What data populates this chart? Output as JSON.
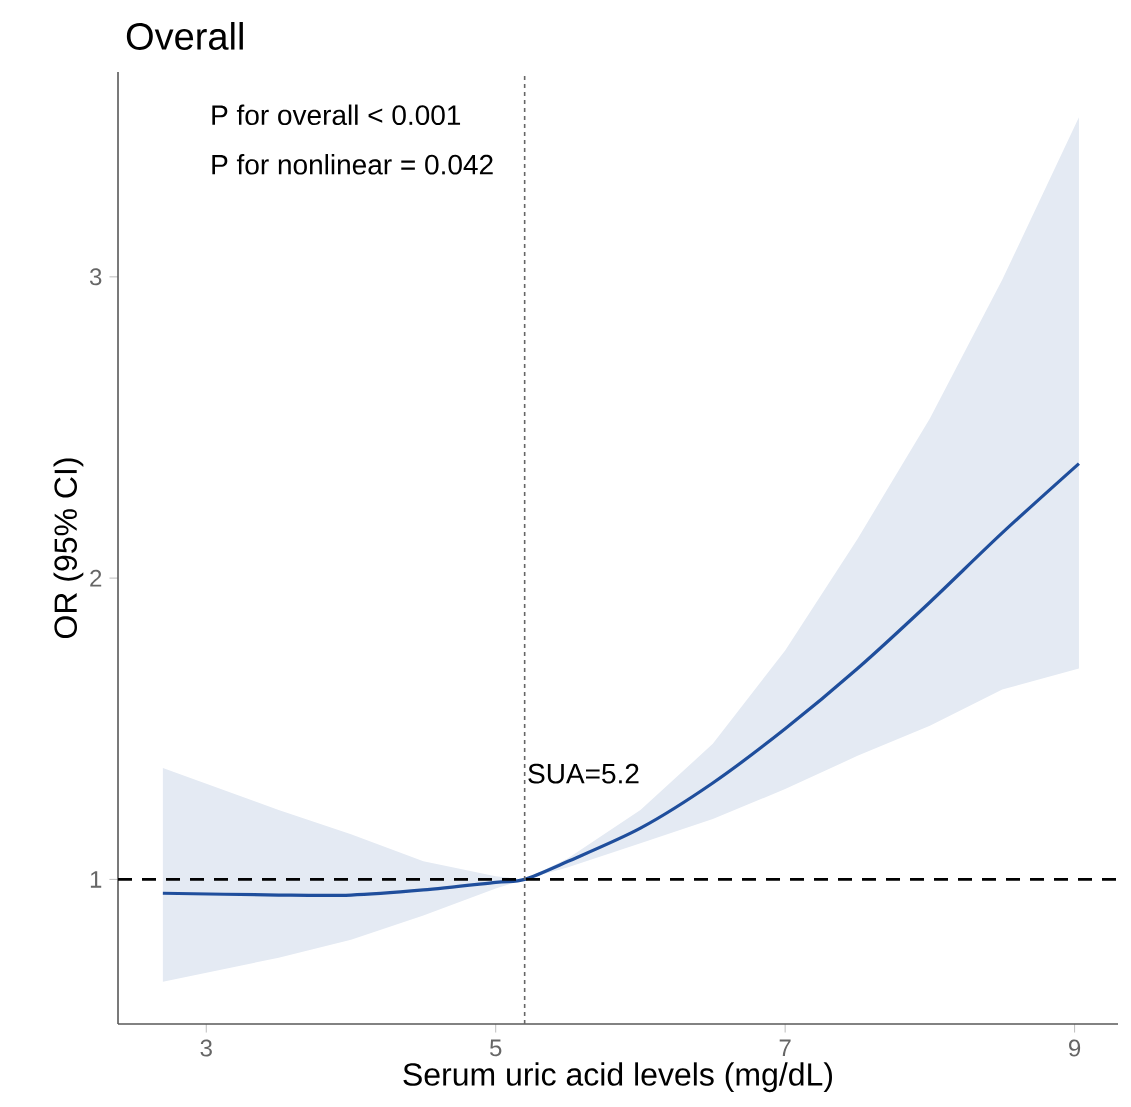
{
  "chart_data": {
    "type": "line",
    "title": "Overall",
    "xlabel": "Serum uric acid levels (mg/dL)",
    "ylabel": "OR (95% CI)",
    "annotations": [
      "P for overall < 0.001",
      "P for nonlinear = 0.042"
    ],
    "series": [
      {
        "color": "#1f4e9c",
        "x": [
          2.7,
          3.5,
          4,
          4.5,
          5,
          5.2,
          5.5,
          6,
          6.5,
          7,
          7.5,
          8,
          8.5,
          9.03
        ],
        "values": [
          0.954,
          0.948,
          0.948,
          0.965,
          0.99,
          1.0,
          1.06,
          1.17,
          1.32,
          1.5,
          1.7,
          1.92,
          2.15,
          2.38
        ],
        "lower": [
          0.66,
          0.74,
          0.8,
          0.88,
          0.97,
          1.0,
          1.04,
          1.12,
          1.2,
          1.3,
          1.41,
          1.51,
          1.63,
          1.7
        ],
        "upper": [
          1.37,
          1.23,
          1.15,
          1.06,
          1.01,
          1.0,
          1.07,
          1.23,
          1.45,
          1.76,
          2.13,
          2.53,
          2.99,
          3.53
        ]
      }
    ],
    "ref_lines": [
      {
        "axis": "y",
        "value": 1,
        "color": "#000000",
        "line_style": "dashed"
      },
      {
        "axis": "x",
        "value": 5.2,
        "label": "SUA=5.2",
        "color": "#666666",
        "line_style": "dotted"
      }
    ],
    "xlim": [
      2.39,
      9.3
    ],
    "ylim": [
      0.52,
      3.68
    ],
    "xticks": [
      3,
      5,
      7,
      9
    ],
    "yticks": [
      1,
      2,
      3
    ],
    "grid": false,
    "marker": "none",
    "line_style": "solid"
  }
}
